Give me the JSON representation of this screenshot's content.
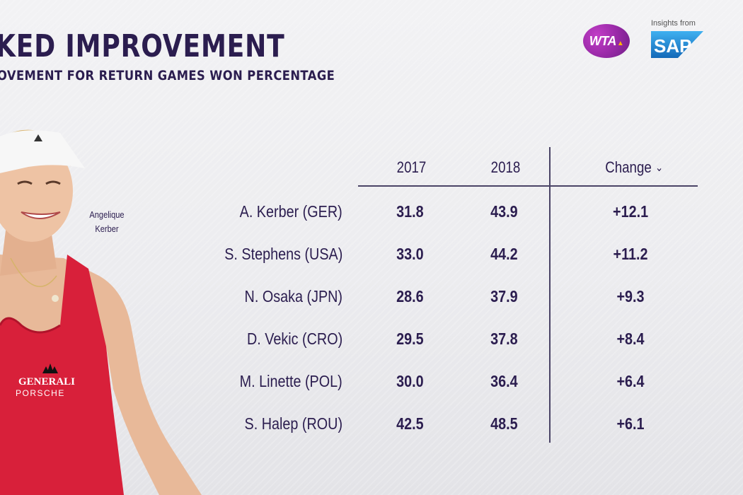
{
  "title": "KED IMPROVEMENT",
  "subtitle": "OVEMENT FOR RETURN GAMES WON PERCENTAGE",
  "logos": {
    "wta_text": "WTA",
    "sap_caption": "Insights from",
    "sap_text": "SAP"
  },
  "player": {
    "label_line1": "Angelique",
    "label_line2": "Kerber",
    "shirt_brand1": "GENERALI",
    "shirt_brand2": "PORSCHE"
  },
  "table": {
    "headers": {
      "y2017": "2017",
      "y2018": "2018",
      "change": "Change"
    },
    "rows": [
      {
        "name": "A. Kerber (GER)",
        "y2017": "31.8",
        "y2018": "43.9",
        "change": "+12.1"
      },
      {
        "name": "S. Stephens (USA)",
        "y2017": "33.0",
        "y2018": "44.2",
        "change": "+11.2"
      },
      {
        "name": "N. Osaka (JPN)",
        "y2017": "28.6",
        "y2018": "37.9",
        "change": "+9.3"
      },
      {
        "name": "D. Vekic (CRO)",
        "y2017": "29.5",
        "y2018": "37.8",
        "change": "+8.4"
      },
      {
        "name": "M. Linette (POL)",
        "y2017": "30.0",
        "y2018": "36.4",
        "change": "+6.4"
      },
      {
        "name": "S. Halep (ROU)",
        "y2017": "42.5",
        "y2018": "48.5",
        "change": "+6.1"
      }
    ]
  },
  "colors": {
    "text": "#2b1d4f",
    "wta": "#9a2aa8",
    "sap": "#1c8ad9",
    "shirt": "#d8203a"
  },
  "icons": {
    "sort": "chevron-down-icon"
  }
}
